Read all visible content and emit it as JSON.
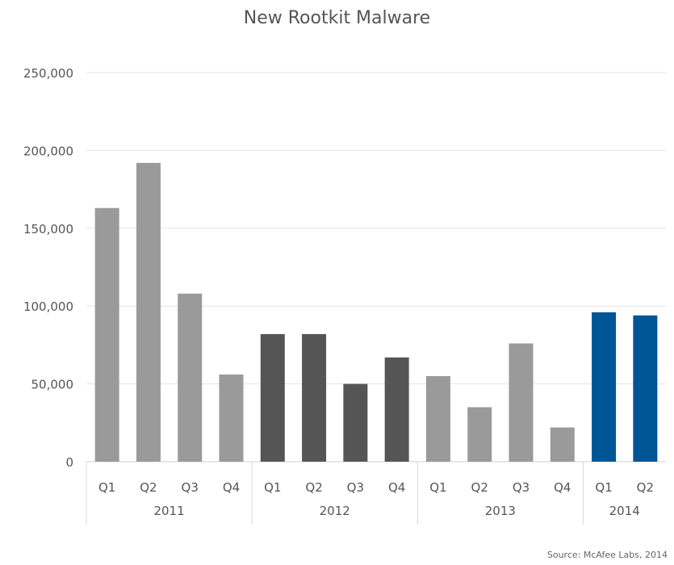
{
  "chart_data": {
    "type": "bar",
    "title": "New Rootkit Malware",
    "source": "Source: McAfee Labs, 2014",
    "xlabel": "",
    "ylabel": "",
    "ylim": [
      0,
      250000
    ],
    "yticks": [
      0,
      50000,
      100000,
      150000,
      200000,
      250000
    ],
    "ytick_labels": [
      "0",
      "50,000",
      "100,000",
      "150,000",
      "200,000",
      "250,000"
    ],
    "grid": true,
    "categories": [
      "Q1",
      "Q2",
      "Q3",
      "Q4",
      "Q1",
      "Q2",
      "Q3",
      "Q4",
      "Q1",
      "Q2",
      "Q3",
      "Q4",
      "Q1",
      "Q2"
    ],
    "groups": [
      {
        "label": "2011",
        "count": 4
      },
      {
        "label": "2012",
        "count": 4
      },
      {
        "label": "2013",
        "count": 4
      },
      {
        "label": "2014",
        "count": 2
      }
    ],
    "values": [
      163000,
      192000,
      108000,
      56000,
      82000,
      82000,
      50000,
      67000,
      55000,
      35000,
      76000,
      22000,
      96000,
      94000
    ],
    "bar_colors": [
      "#9a9a9a",
      "#9a9a9a",
      "#9a9a9a",
      "#9a9a9a",
      "#555555",
      "#555555",
      "#555555",
      "#555555",
      "#9a9a9a",
      "#9a9a9a",
      "#9a9a9a",
      "#9a9a9a",
      "#005596",
      "#005596"
    ]
  }
}
